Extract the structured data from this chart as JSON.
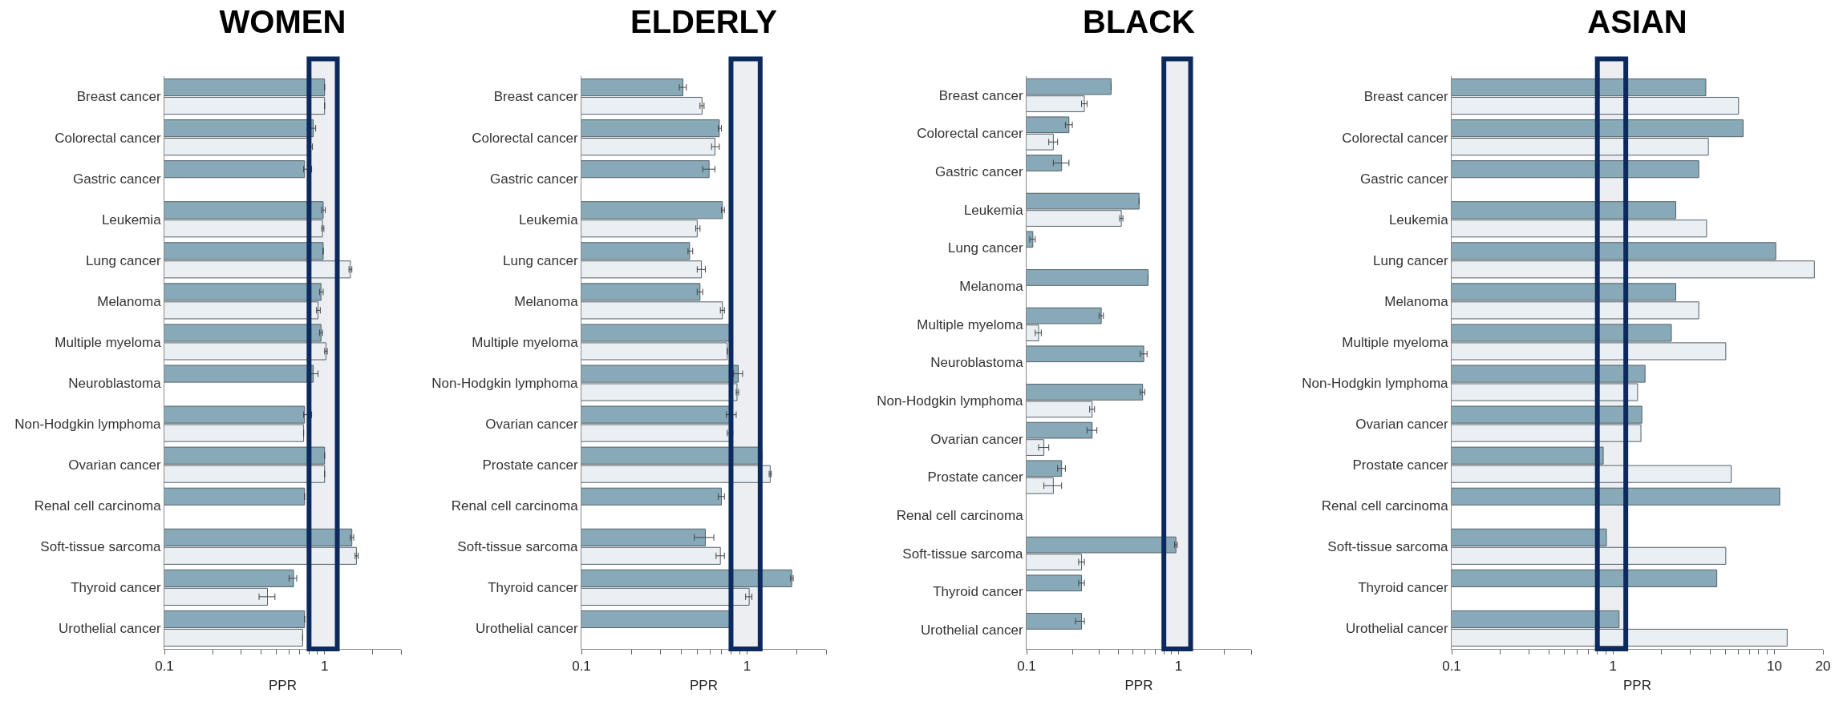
{
  "chart_data": [
    {
      "type": "bar",
      "orientation": "horizontal",
      "title": "WOMEN",
      "xlabel": "PPR",
      "log": "x",
      "grid": false,
      "categories": [
        "Breast cancer",
        "Colorectal cancer",
        "Gastric cancer",
        "Leukemia",
        "Lung cancer",
        "Melanoma",
        "Multiple myeloma",
        "Neuroblastoma",
        "Non-Hodgkin lymphoma",
        "Ovarian cancer",
        "Renal cell carcinoma",
        "Soft-tissue sarcoma",
        "Thyroid cancer",
        "Urothelial cancer"
      ],
      "series": [
        {
          "color": "#87a9b8",
          "values": [
            1.0,
            0.85,
            0.75,
            0.98,
            0.98,
            0.95,
            0.95,
            0.85,
            0.75,
            1.0,
            0.75,
            1.48,
            0.64,
            0.75
          ],
          "errors": [
            null,
            [
              0.82,
              0.88
            ],
            [
              0.74,
              0.83
            ],
            [
              0.96,
              1.01
            ],
            null,
            [
              0.93,
              0.98
            ],
            [
              0.93,
              0.97
            ],
            [
              0.8,
              0.91
            ],
            [
              0.74,
              0.83
            ],
            null,
            null,
            [
              1.45,
              1.52
            ],
            [
              0.6,
              0.67
            ],
            null
          ]
        },
        {
          "color": "#eaeff3",
          "values": [
            1.0,
            0.81,
            null,
            0.97,
            1.45,
            0.91,
            1.02,
            null,
            0.74,
            1.0,
            null,
            1.58,
            0.44,
            0.73
          ],
          "errors": [
            null,
            [
              0.79,
              0.84
            ],
            null,
            [
              0.96,
              0.99
            ],
            [
              1.42,
              1.48
            ],
            [
              0.89,
              0.94
            ],
            [
              1.0,
              1.04
            ],
            null,
            null,
            null,
            null,
            [
              1.55,
              1.62
            ],
            [
              0.39,
              0.49
            ],
            null
          ]
        }
      ],
      "xlim": [
        0.1,
        3
      ],
      "xticks": [
        0.1,
        {
          "value": 0.2,
          "label": null
        },
        {
          "value": 0.3,
          "label": null
        },
        {
          "value": 0.4,
          "label": null
        },
        {
          "value": 0.5,
          "label": null
        },
        {
          "value": 0.6,
          "label": null
        },
        {
          "value": 0.7,
          "label": null
        },
        {
          "value": 0.8,
          "label": null
        },
        {
          "value": 0.9,
          "label": null
        },
        1,
        {
          "value": 2,
          "label": null
        },
        {
          "value": 3,
          "label": null
        }
      ],
      "bands": [
        {
          "axis": "x",
          "from": 0.8,
          "to": 1.2,
          "color": "#0d2a5e"
        }
      ]
    },
    {
      "type": "bar",
      "orientation": "horizontal",
      "title": "ELDERLY",
      "xlabel": "PPR",
      "log": "x",
      "grid": false,
      "categories": [
        "Breast cancer",
        "Colorectal cancer",
        "Gastric cancer",
        "Leukemia",
        "Lung cancer",
        "Melanoma",
        "Multiple myeloma",
        "Non-Hodgkin lymphoma",
        "Ovarian cancer",
        "Prostate cancer",
        "Renal cell carcinoma",
        "Soft-tissue sarcoma",
        "Thyroid cancer",
        "Urothelial cancer"
      ],
      "series": [
        {
          "color": "#87a9b8",
          "values": [
            0.41,
            0.68,
            0.59,
            0.71,
            0.45,
            0.52,
            0.8,
            0.885,
            0.8,
            1.23,
            0.7,
            0.56,
            1.86,
            0.8
          ],
          "errors": [
            [
              0.39,
              0.43
            ],
            [
              0.67,
              0.7
            ],
            [
              0.54,
              0.64
            ],
            [
              0.7,
              0.73
            ],
            [
              0.44,
              0.47
            ],
            [
              0.5,
              0.54
            ],
            null,
            [
              0.83,
              0.94
            ],
            [
              0.75,
              0.86
            ],
            null,
            [
              0.67,
              0.73
            ],
            [
              0.48,
              0.63
            ],
            [
              1.83,
              1.9
            ],
            null
          ]
        },
        {
          "color": "#eaeff3",
          "values": [
            0.535,
            0.64,
            null,
            0.5,
            0.53,
            0.71,
            0.76,
            0.87,
            0.79,
            1.38,
            null,
            0.69,
            1.03,
            null
          ],
          "errors": [
            [
              0.52,
              0.55
            ],
            [
              0.61,
              0.68
            ],
            null,
            [
              0.49,
              0.52
            ],
            [
              0.5,
              0.56
            ],
            [
              0.69,
              0.73
            ],
            null,
            [
              0.86,
              0.89
            ],
            [
              0.76,
              0.82
            ],
            [
              1.36,
              1.4
            ],
            null,
            [
              0.65,
              0.73
            ],
            [
              0.98,
              1.07
            ],
            null
          ]
        }
      ],
      "xlim": [
        0.1,
        3
      ],
      "xticks": [
        0.1,
        {
          "value": 0.2,
          "label": null
        },
        {
          "value": 0.3,
          "label": null
        },
        {
          "value": 0.4,
          "label": null
        },
        {
          "value": 0.5,
          "label": null
        },
        {
          "value": 0.6,
          "label": null
        },
        {
          "value": 0.7,
          "label": null
        },
        {
          "value": 0.8,
          "label": null
        },
        {
          "value": 0.9,
          "label": null
        },
        1,
        {
          "value": 2,
          "label": null
        },
        {
          "value": 3,
          "label": null
        }
      ],
      "bands": [
        {
          "axis": "x",
          "from": 0.8,
          "to": 1.2,
          "color": "#0d2a5e"
        }
      ]
    },
    {
      "type": "bar",
      "orientation": "horizontal",
      "title": "BLACK",
      "xlabel": "PPR",
      "log": "x",
      "grid": false,
      "categories": [
        "Breast cancer",
        "Colorectal cancer",
        "Gastric cancer",
        "Leukemia",
        "Lung cancer",
        "Melanoma",
        "Multiple myeloma",
        "Neuroblastoma",
        "Non-Hodgkin lymphoma",
        "Ovarian cancer",
        "Prostate cancer",
        "Renal cell carcinoma",
        "Soft-tissue sarcoma",
        "Thyroid cancer",
        "Urothelial cancer"
      ],
      "series": [
        {
          "color": "#87a9b8",
          "values": [
            0.36,
            0.19,
            0.17,
            0.55,
            0.11,
            0.63,
            0.31,
            0.59,
            0.58,
            0.27,
            0.17,
            null,
            0.96,
            0.23,
            0.23
          ],
          "errors": [
            null,
            [
              0.18,
              0.2
            ],
            [
              0.15,
              0.19
            ],
            null,
            [
              0.105,
              0.114
            ],
            null,
            [
              0.3,
              0.32
            ],
            [
              0.56,
              0.62
            ],
            [
              0.56,
              0.6
            ],
            [
              0.25,
              0.29
            ],
            [
              0.16,
              0.18
            ],
            null,
            [
              0.94,
              0.98
            ],
            [
              0.22,
              0.24
            ],
            [
              0.21,
              0.24
            ]
          ]
        },
        {
          "color": "#eaeff3",
          "values": [
            0.24,
            0.15,
            null,
            0.42,
            null,
            null,
            0.12,
            null,
            0.27,
            0.13,
            0.15,
            null,
            0.23,
            null,
            null
          ],
          "errors": [
            [
              0.23,
              0.25
            ],
            [
              0.14,
              0.16
            ],
            null,
            [
              0.41,
              0.43
            ],
            null,
            null,
            [
              0.114,
              0.125
            ],
            null,
            [
              0.26,
              0.28
            ],
            [
              0.12,
              0.14
            ],
            [
              0.13,
              0.17
            ],
            null,
            [
              0.22,
              0.24
            ],
            null,
            null
          ]
        }
      ],
      "xlim": [
        0.1,
        3
      ],
      "xticks": [
        0.1,
        {
          "value": 0.2,
          "label": null
        },
        {
          "value": 0.3,
          "label": null
        },
        {
          "value": 0.4,
          "label": null
        },
        {
          "value": 0.5,
          "label": null
        },
        {
          "value": 0.6,
          "label": null
        },
        {
          "value": 0.7,
          "label": null
        },
        {
          "value": 0.8,
          "label": null
        },
        {
          "value": 0.9,
          "label": null
        },
        1,
        {
          "value": 2,
          "label": null
        },
        {
          "value": 3,
          "label": null
        }
      ],
      "bands": [
        {
          "axis": "x",
          "from": 0.8,
          "to": 1.2,
          "color": "#0d2a5e"
        }
      ]
    },
    {
      "type": "bar",
      "orientation": "horizontal",
      "title": "ASIAN",
      "xlabel": "PPR",
      "log": "x",
      "grid": false,
      "categories": [
        "Breast cancer",
        "Colorectal cancer",
        "Gastric cancer",
        "Leukemia",
        "Lung cancer",
        "Melanoma",
        "Multiple myeloma",
        "Non-Hodgkin lymphoma",
        "Ovarian cancer",
        "Prostate cancer",
        "Renal cell carcinoma",
        "Soft-tissue sarcoma",
        "Thyroid cancer",
        "Urothelial cancer"
      ],
      "series": [
        {
          "color": "#87a9b8",
          "values": [
            3.76,
            6.4,
            3.4,
            2.45,
            10.2,
            2.45,
            2.3,
            1.58,
            1.51,
            0.87,
            10.8,
            0.91,
            4.4,
            1.09
          ]
        },
        {
          "color": "#eaeff3",
          "values": [
            6.0,
            3.9,
            null,
            3.8,
            17.7,
            3.4,
            5.0,
            1.42,
            1.49,
            5.4,
            null,
            5.0,
            null,
            12.0
          ]
        }
      ],
      "xlim": [
        0.1,
        20
      ],
      "xticks": [
        0.1,
        {
          "value": 0.2,
          "label": null
        },
        {
          "value": 0.3,
          "label": null
        },
        {
          "value": 0.4,
          "label": null
        },
        {
          "value": 0.5,
          "label": null
        },
        {
          "value": 0.6,
          "label": null
        },
        {
          "value": 0.7,
          "label": null
        },
        {
          "value": 0.8,
          "label": null
        },
        {
          "value": 0.9,
          "label": null
        },
        1,
        {
          "value": 2,
          "label": null
        },
        {
          "value": 3,
          "label": null
        },
        {
          "value": 4,
          "label": null
        },
        {
          "value": 5,
          "label": null
        },
        {
          "value": 6,
          "label": null
        },
        {
          "value": 7,
          "label": null
        },
        {
          "value": 8,
          "label": null
        },
        {
          "value": 9,
          "label": null
        },
        10,
        20
      ],
      "bands": [
        {
          "axis": "x",
          "from": 0.8,
          "to": 1.2,
          "color": "#0d2a5e"
        }
      ]
    }
  ]
}
